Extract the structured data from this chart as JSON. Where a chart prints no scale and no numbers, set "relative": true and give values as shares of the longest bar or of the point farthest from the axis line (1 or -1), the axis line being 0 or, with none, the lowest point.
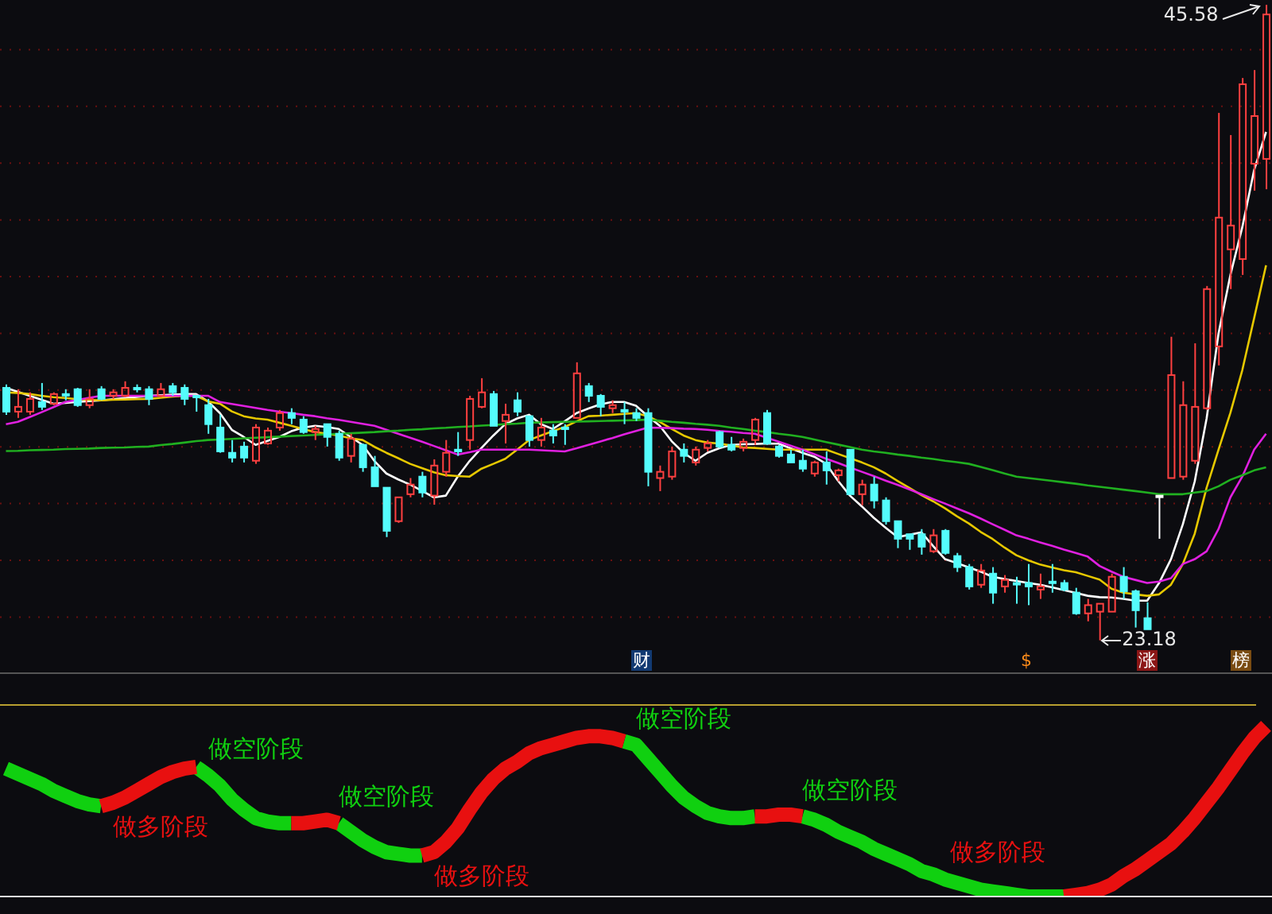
{
  "chart_data": [
    {
      "type": "candlestick",
      "categories": [
        null,
        null,
        null,
        null,
        null,
        null,
        null,
        null,
        null,
        null,
        null,
        null,
        null,
        null,
        null,
        null,
        null,
        null,
        null,
        null,
        null,
        null,
        null,
        null,
        null,
        null,
        null,
        null,
        null,
        null,
        null,
        null,
        null,
        null,
        null,
        null,
        null,
        null,
        null,
        null,
        null,
        null,
        null,
        null,
        null,
        null,
        null,
        null,
        null,
        null,
        null,
        null,
        null,
        null,
        null,
        null,
        null,
        null,
        null,
        null,
        null,
        null,
        null,
        null,
        null,
        null,
        null,
        null,
        null,
        null,
        null,
        null,
        null,
        null,
        null,
        null,
        null,
        null,
        null,
        null,
        null,
        null,
        null,
        null,
        null,
        null,
        null,
        null,
        null,
        null,
        null,
        null,
        null,
        null,
        null,
        null,
        null,
        null,
        null,
        null,
        null,
        null,
        null,
        null,
        null,
        null,
        null
      ],
      "ohlc": [
        [
          32.08,
          32.2,
          31.13,
          31.24
        ],
        [
          31.24,
          32.03,
          31.02,
          31.41
        ],
        [
          31.24,
          31.92,
          31.13,
          31.69
        ],
        [
          31.58,
          32.25,
          31.3,
          31.41
        ],
        [
          31.52,
          31.92,
          31.47,
          31.86
        ],
        [
          31.86,
          32.03,
          31.64,
          31.86
        ],
        [
          32.03,
          32.08,
          31.41,
          31.47
        ],
        [
          31.47,
          32.03,
          31.36,
          31.69
        ],
        [
          32.03,
          32.14,
          31.64,
          31.69
        ],
        [
          31.8,
          32.03,
          31.69,
          31.92
        ],
        [
          31.8,
          32.31,
          31.75,
          32.08
        ],
        [
          32.08,
          32.2,
          31.92,
          32.03
        ],
        [
          32.03,
          32.14,
          31.47,
          31.69
        ],
        [
          31.8,
          32.25,
          31.75,
          32.03
        ],
        [
          32.14,
          32.25,
          31.8,
          31.92
        ],
        [
          32.08,
          32.2,
          31.47,
          31.69
        ],
        [
          31.8,
          31.8,
          31.24,
          31.75
        ],
        [
          31.47,
          31.69,
          30.46,
          30.8
        ],
        [
          30.68,
          31.13,
          29.79,
          29.84
        ],
        [
          29.79,
          30.24,
          29.45,
          29.62
        ],
        [
          30.01,
          30.18,
          29.45,
          29.62
        ],
        [
          29.51,
          30.8,
          29.4,
          30.68
        ],
        [
          30.12,
          30.68,
          30.07,
          30.57
        ],
        [
          30.68,
          31.3,
          30.57,
          31.19
        ],
        [
          31.19,
          31.36,
          30.8,
          31.02
        ],
        [
          30.96,
          31.08,
          30.46,
          30.52
        ],
        [
          30.52,
          30.74,
          30.24,
          30.63
        ],
        [
          30.8,
          30.8,
          30.01,
          30.35
        ],
        [
          30.46,
          30.57,
          29.51,
          29.62
        ],
        [
          29.68,
          30.46,
          29.45,
          30.29
        ],
        [
          30.07,
          30.12,
          29.12,
          29.28
        ],
        [
          29.28,
          29.68,
          28.61,
          28.61
        ],
        [
          28.56,
          28.56,
          26.82,
          27.04
        ],
        [
          27.38,
          28.22,
          27.32,
          28.22
        ],
        [
          28.33,
          28.9,
          28.22,
          28.67
        ],
        [
          28.95,
          29.12,
          28.22,
          28.39
        ],
        [
          28.28,
          29.56,
          27.96,
          29.34
        ],
        [
          29.12,
          30.24,
          28.95,
          29.79
        ],
        [
          29.9,
          30.52,
          29.68,
          29.84
        ],
        [
          30.24,
          31.8,
          29.9,
          31.69
        ],
        [
          31.41,
          32.42,
          31.36,
          31.92
        ],
        [
          31.86,
          31.97,
          30.74,
          30.74
        ],
        [
          30.91,
          31.52,
          30.12,
          31.13
        ],
        [
          31.64,
          31.92,
          31.08,
          31.24
        ],
        [
          31.08,
          31.08,
          30.01,
          30.24
        ],
        [
          30.24,
          31.02,
          30.01,
          30.68
        ],
        [
          30.57,
          30.8,
          30.12,
          30.4
        ],
        [
          30.68,
          30.8,
          30.07,
          30.63
        ],
        [
          31.02,
          32.98,
          31.02,
          32.59
        ],
        [
          32.14,
          32.25,
          31.58,
          31.8
        ],
        [
          31.8,
          31.86,
          31.08,
          31.41
        ],
        [
          31.36,
          31.64,
          31.19,
          31.47
        ],
        [
          31.3,
          31.58,
          30.8,
          31.24
        ],
        [
          31.19,
          31.36,
          30.91,
          31.02
        ],
        [
          31.19,
          31.36,
          28.61,
          29.12
        ],
        [
          28.9,
          29.34,
          28.44,
          29.12
        ],
        [
          28.95,
          30.01,
          28.84,
          29.84
        ],
        [
          29.9,
          30.12,
          29.45,
          29.68
        ],
        [
          29.45,
          30.01,
          29.34,
          29.9
        ],
        [
          29.96,
          30.24,
          29.84,
          30.12
        ],
        [
          30.52,
          30.57,
          29.96,
          30.01
        ],
        [
          30.07,
          30.35,
          29.84,
          29.9
        ],
        [
          29.96,
          30.29,
          29.84,
          30.18
        ],
        [
          30.24,
          31.02,
          30.07,
          30.96
        ],
        [
          31.19,
          31.3,
          30.07,
          30.12
        ],
        [
          30.01,
          30.07,
          29.62,
          29.68
        ],
        [
          29.73,
          29.9,
          29.45,
          29.45
        ],
        [
          29.51,
          29.9,
          29.12,
          29.23
        ],
        [
          29.06,
          29.51,
          28.95,
          29.45
        ],
        [
          29.45,
          29.84,
          28.67,
          29.17
        ],
        [
          29.0,
          29.23,
          28.78,
          29.17
        ],
        [
          29.9,
          29.9,
          28.33,
          28.33
        ],
        [
          28.33,
          28.84,
          27.94,
          28.67
        ],
        [
          28.67,
          28.95,
          27.83,
          28.11
        ],
        [
          28.11,
          28.22,
          27.26,
          27.38
        ],
        [
          27.38,
          27.38,
          26.43,
          26.76
        ],
        [
          26.92,
          26.92,
          26.37,
          26.76
        ],
        [
          26.92,
          27.1,
          26.2,
          26.48
        ],
        [
          26.32,
          27.1,
          26.26,
          26.88
        ],
        [
          27.04,
          27.1,
          26.2,
          26.26
        ],
        [
          26.15,
          26.26,
          25.59,
          25.76
        ],
        [
          25.76,
          25.87,
          24.97,
          25.08
        ],
        [
          25.14,
          25.87,
          25.03,
          25.64
        ],
        [
          25.53,
          25.76,
          24.47,
          24.86
        ],
        [
          25.08,
          25.48,
          24.86,
          25.31
        ],
        [
          25.2,
          25.42,
          24.47,
          25.17
        ],
        [
          25.2,
          25.87,
          24.42,
          25.08
        ],
        [
          24.97,
          25.53,
          24.64,
          25.08
        ],
        [
          25.25,
          25.87,
          24.86,
          25.2
        ],
        [
          25.2,
          25.31,
          24.91,
          24.97
        ],
        [
          24.86,
          25.03,
          24.08,
          24.13
        ],
        [
          24.13,
          24.64,
          23.85,
          24.42
        ],
        [
          24.19,
          24.47,
          23.18,
          24.47
        ],
        [
          24.19,
          25.53,
          24.19,
          25.42
        ],
        [
          25.42,
          25.76,
          24.64,
          24.91
        ],
        [
          24.91,
          24.97,
          23.63,
          24.24
        ],
        [
          23.96,
          24.52,
          23.57,
          23.57
        ],
        [
          28.28,
          28.28,
          26.76,
          28.28
        ],
        [
          28.9,
          33.88,
          28.9,
          32.53
        ],
        [
          28.95,
          32.31,
          28.84,
          31.47
        ],
        [
          29.51,
          33.65,
          29.4,
          31.41
        ],
        [
          31.36,
          35.67,
          31.3,
          35.56
        ],
        [
          33.54,
          41.77,
          32.87,
          38.08
        ],
        [
          36.96,
          40.99,
          35.56,
          37.8
        ],
        [
          36.62,
          43.0,
          36.06,
          42.78
        ],
        [
          39.98,
          43.28,
          39.03,
          41.66
        ],
        [
          40.15,
          45.58,
          39.08,
          45.24
        ]
      ],
      "colors": [
        "#54fcfc",
        "#ff4040",
        "#ff4040",
        "#54fcfc",
        "#ff4040",
        "#54fcfc",
        "#54fcfc",
        "#ff4040",
        "#54fcfc",
        "#ff4040",
        "#ff4040",
        "#54fcfc",
        "#54fcfc",
        "#ff4040",
        "#54fcfc",
        "#54fcfc",
        "#54fcfc",
        "#54fcfc",
        "#54fcfc",
        "#54fcfc",
        "#54fcfc",
        "#ff4040",
        "#ff4040",
        "#ff4040",
        "#54fcfc",
        "#54fcfc",
        "#ff4040",
        "#54fcfc",
        "#54fcfc",
        "#ff4040",
        "#54fcfc",
        "#54fcfc",
        "#54fcfc",
        "#ff4040",
        "#ff4040",
        "#54fcfc",
        "#ff4040",
        "#ff4040",
        "#54fcfc",
        "#ff4040",
        "#ff4040",
        "#54fcfc",
        "#ff4040",
        "#54fcfc",
        "#54fcfc",
        "#ff4040",
        "#54fcfc",
        "#54fcfc",
        "#ff4040",
        "#54fcfc",
        "#54fcfc",
        "#ff4040",
        "#54fcfc",
        "#54fcfc",
        "#54fcfc",
        "#ff4040",
        "#ff4040",
        "#54fcfc",
        "#ff4040",
        "#ff4040",
        "#54fcfc",
        "#54fcfc",
        "#ff4040",
        "#ff4040",
        "#54fcfc",
        "#54fcfc",
        "#54fcfc",
        "#54fcfc",
        "#ff4040",
        "#54fcfc",
        "#ff4040",
        "#54fcfc",
        "#ff4040",
        "#54fcfc",
        "#54fcfc",
        "#54fcfc",
        "#54fcfc",
        "#54fcfc",
        "#ff4040",
        "#54fcfc",
        "#54fcfc",
        "#54fcfc",
        "#ff4040",
        "#54fcfc",
        "#ff4040",
        "#54fcfc",
        "#54fcfc",
        "#ff4040",
        "#54fcfc",
        "#54fcfc",
        "#54fcfc",
        "#ff4040",
        "#ff4040",
        "#ff4040",
        "#54fcfc",
        "#54fcfc",
        "#54fcfc",
        "#ffffff",
        "#ff4040",
        "#ff4040",
        "#ff4040",
        "#ff4040",
        "#ff4040",
        "#ff4040",
        "#ff4040",
        "#ff4040",
        "#ff4040"
      ],
      "series": [
        {
          "type": "line",
          "color": "#ffffff",
          "values": [
            32.08,
            31.94,
            31.8,
            31.66,
            31.52,
            31.55,
            31.58,
            31.61,
            31.64,
            31.68,
            31.72,
            31.76,
            31.8,
            31.82,
            31.84,
            31.86,
            31.86,
            31.6,
            31.19,
            30.6,
            30.35,
            30.07,
            30.21,
            30.35,
            30.55,
            30.68,
            30.74,
            30.7,
            30.63,
            30.35,
            30.07,
            29.5,
            29.06,
            28.85,
            28.67,
            28.45,
            28.22,
            28.28,
            28.95,
            29.5,
            29.96,
            30.4,
            30.8,
            31.0,
            31.13,
            30.8,
            30.63,
            30.9,
            31.19,
            31.35,
            31.5,
            31.58,
            31.58,
            31.45,
            31.08,
            30.74,
            30.2,
            29.79,
            29.51,
            29.79,
            29.95,
            30.07,
            30.09,
            30.1,
            30.12,
            30.11,
            29.95,
            29.79,
            29.65,
            29.4,
            28.8,
            28.28,
            27.9,
            27.5,
            27.15,
            26.82,
            26.9,
            26.99,
            26.5,
            26.04,
            25.9,
            25.75,
            25.6,
            25.42,
            25.34,
            25.27,
            25.2,
            25.14,
            25.05,
            24.95,
            24.85,
            24.75,
            24.7,
            24.69,
            24.64,
            24.58,
            24.58,
            25.2,
            26.04,
            27.27,
            28.78,
            31.0,
            33.99,
            36.06,
            37.74,
            39.76,
            41.1
          ]
        },
        {
          "type": "line",
          "color": "#e6c800",
          "values": [
            31.92,
            31.9,
            31.86,
            31.8,
            31.75,
            31.72,
            31.68,
            31.66,
            31.64,
            31.66,
            31.67,
            31.68,
            31.69,
            31.73,
            31.77,
            31.8,
            31.8,
            31.6,
            31.52,
            31.25,
            31.08,
            31.0,
            30.96,
            30.85,
            30.74,
            30.63,
            30.52,
            30.46,
            30.4,
            30.3,
            30.24,
            30.0,
            29.79,
            29.6,
            29.4,
            29.25,
            29.1,
            29.0,
            28.97,
            28.95,
            29.23,
            29.4,
            29.58,
            29.9,
            30.24,
            30.4,
            30.55,
            30.7,
            30.9,
            31.08,
            31.1,
            31.13,
            31.16,
            31.19,
            31.08,
            30.88,
            30.63,
            30.4,
            30.24,
            30.15,
            30.12,
            30.05,
            29.98,
            29.96,
            29.93,
            29.9,
            29.9,
            29.9,
            29.9,
            29.9,
            29.75,
            29.6,
            29.45,
            29.28,
            29.06,
            28.8,
            28.55,
            28.3,
            28.08,
            27.83,
            27.55,
            27.3,
            27.0,
            26.75,
            26.45,
            26.18,
            26.0,
            25.85,
            25.75,
            25.65,
            25.58,
            25.45,
            25.32,
            25.0,
            24.86,
            24.8,
            24.75,
            24.8,
            25.14,
            25.87,
            26.94,
            28.56,
            29.9,
            31.2,
            32.7,
            34.54,
            36.4
          ]
        },
        {
          "type": "line",
          "color": "#e020e0",
          "values": [
            30.8,
            30.88,
            31.05,
            31.22,
            31.4,
            31.58,
            31.65,
            31.73,
            31.8,
            31.8,
            31.8,
            31.8,
            31.8,
            31.8,
            31.8,
            31.8,
            31.8,
            31.8,
            31.58,
            31.51,
            31.44,
            31.37,
            31.3,
            31.24,
            31.19,
            31.13,
            31.08,
            31.01,
            30.95,
            30.88,
            30.81,
            30.74,
            30.6,
            30.46,
            30.32,
            30.18,
            30.03,
            29.88,
            29.73,
            29.81,
            29.9,
            29.9,
            29.9,
            29.9,
            29.9,
            29.88,
            29.86,
            29.84,
            29.95,
            30.07,
            30.19,
            30.31,
            30.44,
            30.56,
            30.68,
            30.67,
            30.66,
            30.64,
            30.63,
            30.6,
            30.56,
            30.53,
            30.49,
            30.46,
            30.32,
            30.18,
            30.04,
            29.9,
            29.74,
            29.58,
            29.43,
            29.27,
            29.12,
            28.97,
            28.81,
            28.66,
            28.5,
            28.33,
            28.16,
            28.0,
            27.83,
            27.66,
            27.47,
            27.27,
            27.08,
            26.88,
            26.76,
            26.63,
            26.51,
            26.38,
            26.26,
            26.13,
            25.8,
            25.6,
            25.42,
            25.31,
            25.2,
            25.25,
            25.37,
            25.87,
            26.04,
            26.32,
            27.1,
            28.22,
            28.95,
            29.9,
            30.46
          ]
        },
        {
          "type": "line",
          "color": "#20b020",
          "values": [
            29.85,
            29.86,
            29.88,
            29.89,
            29.9,
            29.92,
            29.93,
            29.94,
            29.96,
            29.97,
            29.98,
            30.0,
            30.01,
            30.06,
            30.1,
            30.15,
            30.2,
            30.24,
            30.26,
            30.28,
            30.3,
            30.32,
            30.34,
            30.36,
            30.38,
            30.4,
            30.42,
            30.44,
            30.46,
            30.48,
            30.5,
            30.52,
            30.55,
            30.57,
            30.6,
            30.62,
            30.65,
            30.67,
            30.7,
            30.72,
            30.75,
            30.77,
            30.8,
            30.82,
            30.85,
            30.86,
            30.87,
            30.88,
            30.89,
            30.9,
            30.91,
            30.92,
            30.93,
            30.94,
            30.96,
            30.92,
            30.88,
            30.85,
            30.81,
            30.78,
            30.74,
            30.68,
            30.63,
            30.57,
            30.52,
            30.46,
            30.41,
            30.35,
            30.26,
            30.17,
            30.08,
            29.99,
            29.9,
            29.84,
            29.79,
            29.73,
            29.68,
            29.62,
            29.57,
            29.51,
            29.46,
            29.4,
            29.29,
            29.18,
            29.06,
            28.95,
            28.9,
            28.85,
            28.8,
            28.75,
            28.7,
            28.64,
            28.59,
            28.54,
            28.49,
            28.44,
            28.39,
            28.33,
            28.33,
            28.33,
            28.39,
            28.44,
            28.61,
            28.84,
            29.0,
            29.17,
            29.28
          ]
        }
      ],
      "ylim": [
        22.05,
        45.75
      ],
      "yticks": [
        {
          "value": 24,
          "label": null
        },
        {
          "value": 26,
          "label": null
        },
        {
          "value": 28,
          "label": null
        },
        {
          "value": 30,
          "label": null
        },
        {
          "value": 32,
          "label": null
        },
        {
          "value": 34,
          "label": null
        },
        {
          "value": 36,
          "label": null
        },
        {
          "value": 38,
          "label": null
        },
        {
          "value": 40,
          "label": null
        },
        {
          "value": 42,
          "label": null
        },
        {
          "value": 44,
          "label": null
        }
      ],
      "grid": "y",
      "tick_labels": false,
      "annotations": [
        "45.58",
        "23.18",
        "财",
        "$",
        "涨",
        "榜"
      ]
    },
    {
      "type": "line",
      "relative": true,
      "tick_labels": false,
      "categories": [
        null,
        null,
        null,
        null,
        null,
        null,
        null,
        null,
        null,
        null,
        null,
        null,
        null,
        null,
        null,
        null,
        null,
        null,
        null,
        null,
        null,
        null,
        null,
        null,
        null,
        null,
        null,
        null,
        null,
        null,
        null,
        null,
        null,
        null,
        null,
        null,
        null,
        null,
        null,
        null,
        null,
        null,
        null,
        null,
        null,
        null,
        null,
        null,
        null,
        null,
        null,
        null,
        null,
        null,
        null,
        null,
        null,
        null,
        null,
        null,
        null,
        null,
        null,
        null,
        null,
        null,
        null,
        null,
        null,
        null,
        null,
        null,
        null,
        null,
        null,
        null,
        null,
        null,
        null,
        null,
        null,
        null,
        null,
        null,
        null,
        null,
        null,
        null,
        null,
        null,
        null,
        null,
        null,
        null,
        null,
        null,
        null,
        null,
        null,
        null,
        null,
        null,
        null,
        null,
        null,
        null,
        null
      ],
      "series": [
        {
          "color": "#10d010",
          "values": [
            0.75,
            0.72,
            0.69,
            0.66,
            0.62,
            0.59,
            0.56,
            0.54,
            0.53,
            null,
            null,
            null,
            null,
            null,
            null,
            null,
            0.76,
            0.71,
            0.65,
            0.57,
            0.51,
            0.46,
            0.44,
            0.43,
            0.43,
            null,
            null,
            null,
            0.43,
            0.38,
            0.33,
            0.29,
            0.26,
            0.25,
            0.24,
            0.24,
            null,
            null,
            null,
            null,
            null,
            null,
            null,
            null,
            null,
            null,
            null,
            null,
            null,
            null,
            null,
            null,
            0.91,
            0.89,
            0.81,
            0.73,
            0.65,
            0.58,
            0.53,
            0.49,
            0.47,
            0.46,
            0.46,
            0.47,
            null,
            null,
            null,
            0.47,
            0.45,
            0.42,
            0.38,
            0.35,
            0.32,
            0.28,
            0.25,
            0.22,
            0.19,
            0.15,
            0.13,
            0.1,
            0.08,
            0.06,
            0.04,
            0.03,
            0.02,
            0.01,
            0,
            0,
            0,
            0,
            null,
            null,
            null,
            null,
            null,
            null,
            null,
            null,
            null,
            null,
            null,
            null,
            null,
            null,
            null,
            null,
            null
          ]
        },
        {
          "color": "#e81010",
          "values": [
            null,
            null,
            null,
            null,
            null,
            null,
            null,
            null,
            0.53,
            0.55,
            0.58,
            0.62,
            0.66,
            0.7,
            0.73,
            0.75,
            0.76,
            null,
            null,
            null,
            null,
            null,
            null,
            null,
            0.43,
            0.43,
            0.44,
            0.45,
            0.43,
            null,
            null,
            null,
            null,
            null,
            null,
            0.24,
            0.26,
            0.32,
            0.4,
            0.51,
            0.61,
            0.69,
            0.75,
            0.79,
            0.84,
            0.87,
            0.89,
            0.91,
            0.93,
            0.94,
            0.94,
            0.93,
            0.91,
            null,
            null,
            null,
            null,
            null,
            null,
            null,
            null,
            null,
            null,
            0.47,
            0.47,
            0.48,
            0.48,
            0.47,
            null,
            null,
            null,
            null,
            null,
            null,
            null,
            null,
            null,
            null,
            null,
            null,
            null,
            null,
            null,
            null,
            null,
            null,
            null,
            null,
            null,
            0,
            0.01,
            0.02,
            0.04,
            0.07,
            0.12,
            0.16,
            0.21,
            0.26,
            0.31,
            0.38,
            0.46,
            0.55,
            0.64,
            0.74,
            0.84,
            0.93,
            1
          ]
        }
      ],
      "annotations": [
        "做多阶段",
        "做空阶段",
        "做空阶段",
        "做多阶段",
        "做空阶段",
        "做空阶段",
        "做多阶段"
      ]
    }
  ]
}
